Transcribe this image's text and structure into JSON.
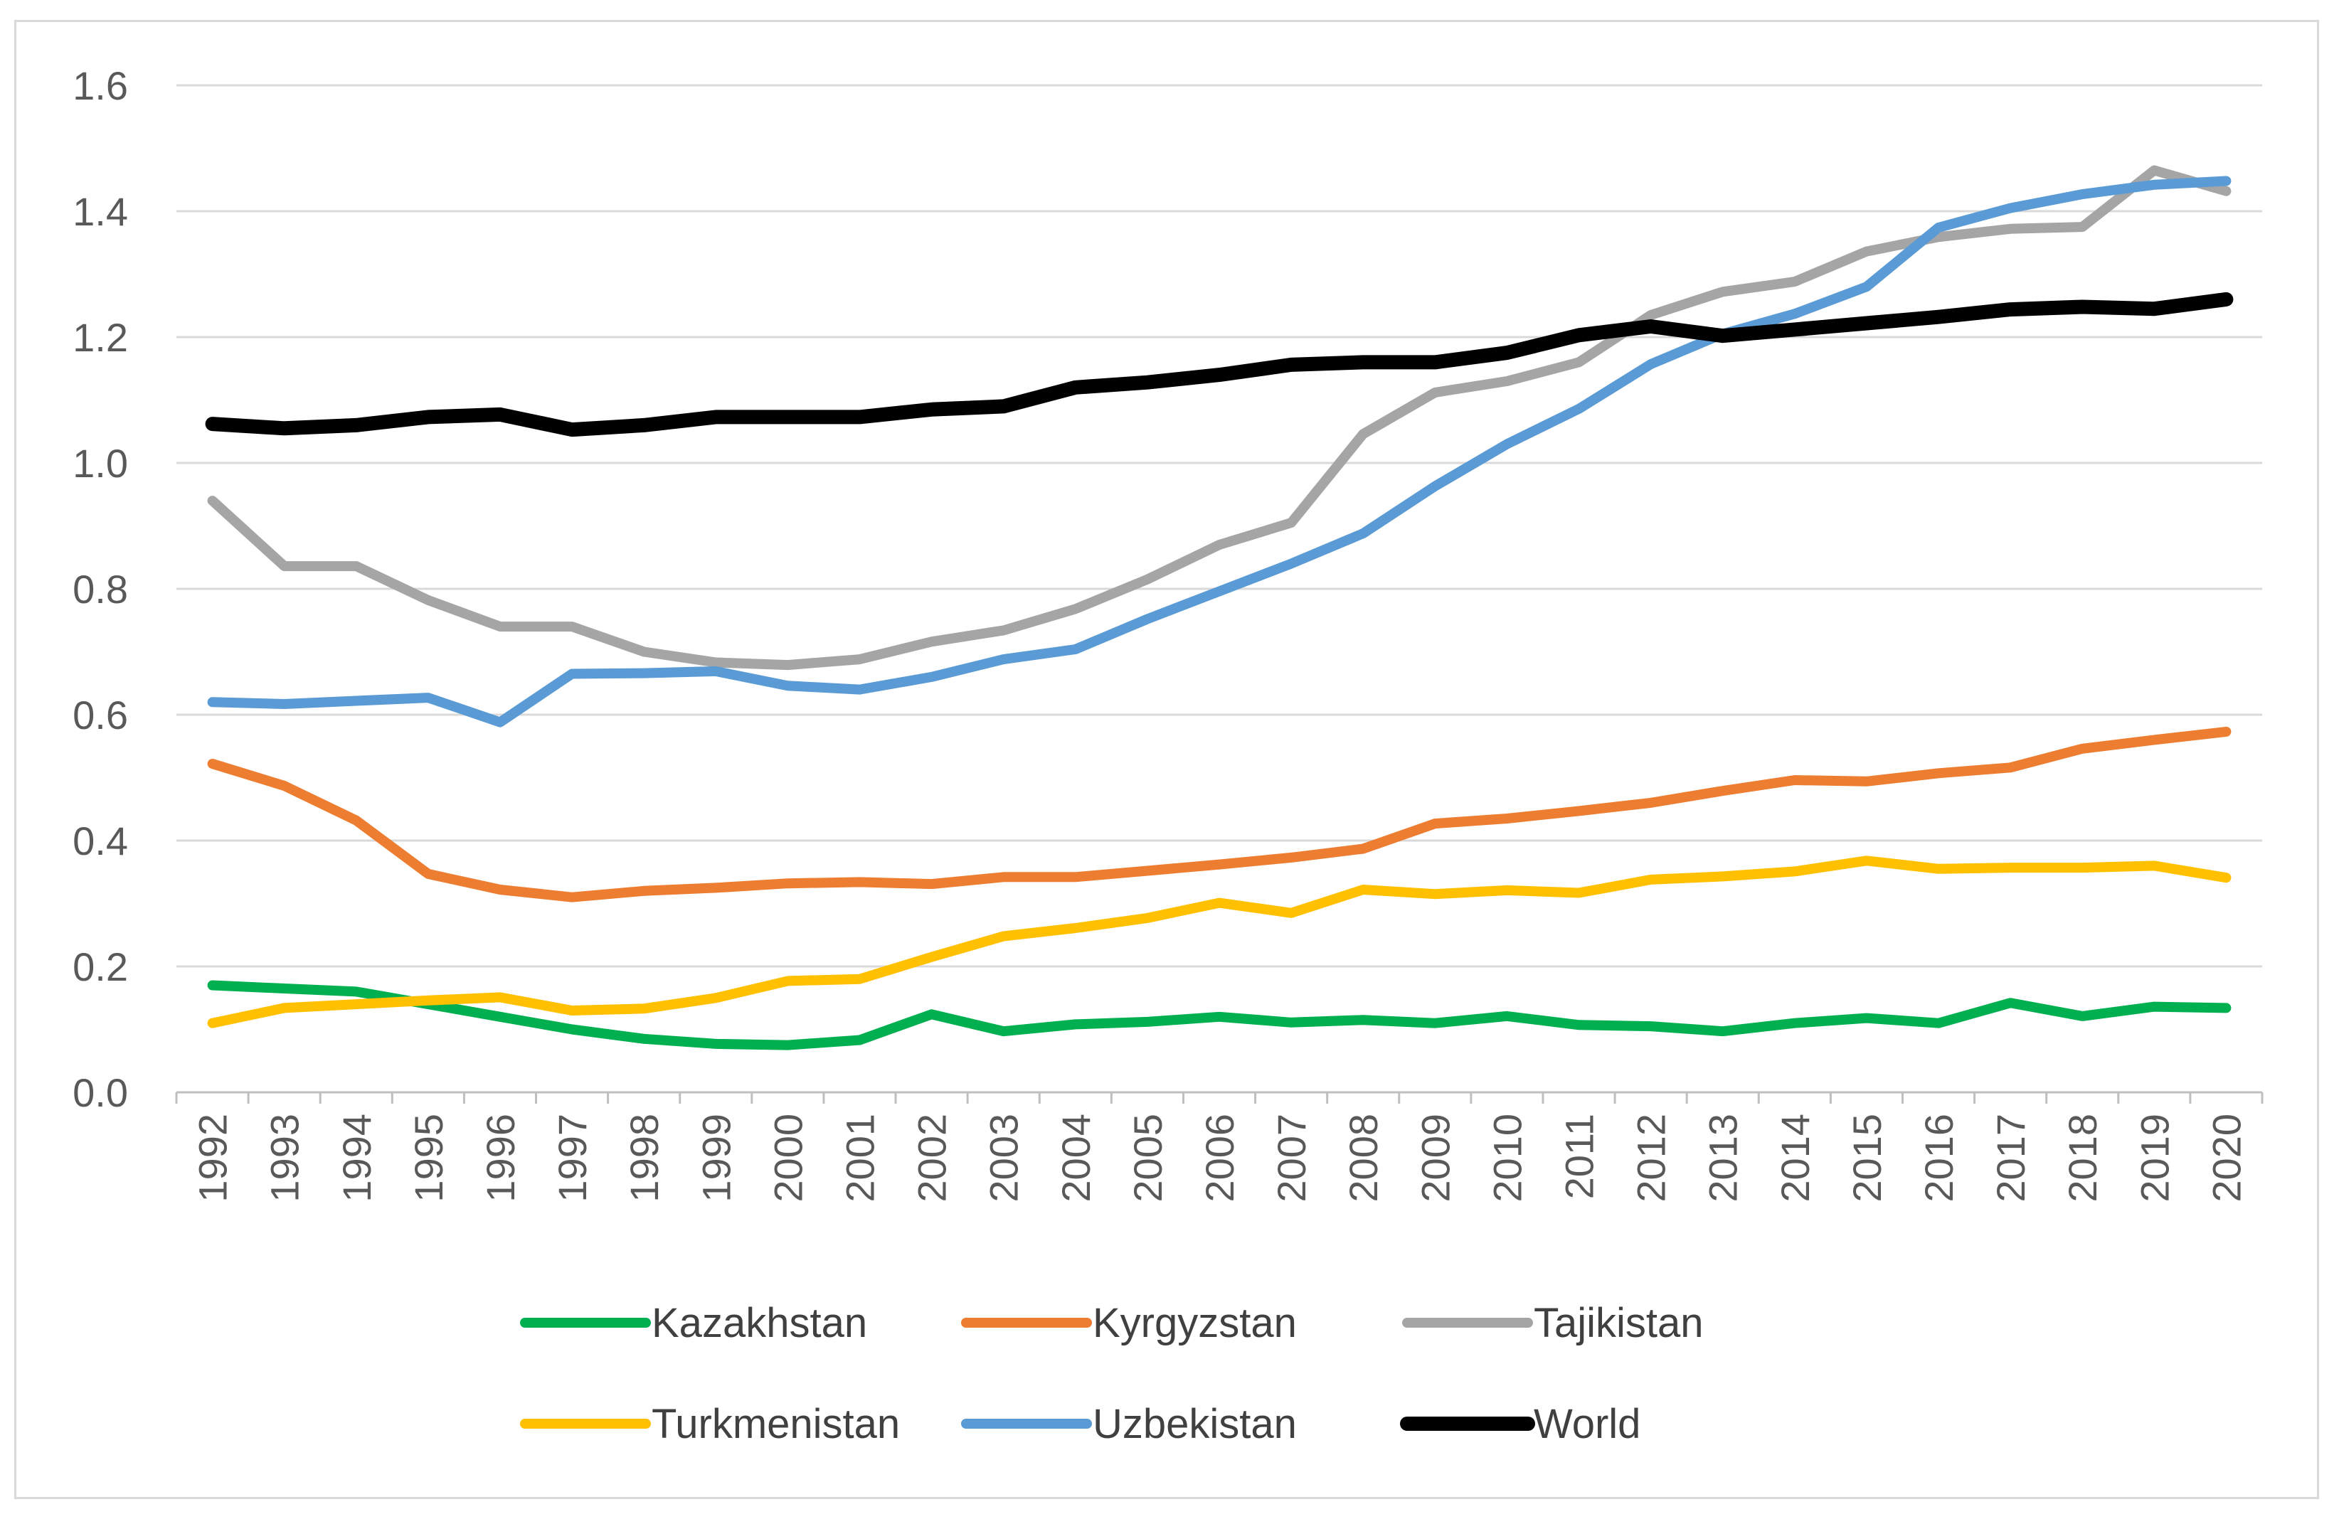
{
  "chart_data": {
    "type": "line",
    "title": "",
    "xlabel": "",
    "ylabel": "",
    "ylim": [
      0,
      1.6
    ],
    "y_ticks": [
      "0.0",
      "0.2",
      "0.4",
      "0.6",
      "0.8",
      "1.0",
      "1.2",
      "1.4",
      "1.6"
    ],
    "y_tick_values": [
      0,
      0.2,
      0.4,
      0.6,
      0.8,
      1.0,
      1.2,
      1.4,
      1.6
    ],
    "grid": true,
    "legend_position": "bottom",
    "categories": [
      "1992",
      "1993",
      "1994",
      "1995",
      "1996",
      "1997",
      "1998",
      "1999",
      "2000",
      "2001",
      "2002",
      "2003",
      "2004",
      "2005",
      "2006",
      "2007",
      "2008",
      "2009",
      "2010",
      "2011",
      "2012",
      "2013",
      "2014",
      "2015",
      "2016",
      "2017",
      "2018",
      "2019",
      "2020"
    ],
    "series": [
      {
        "name": "Kazakhstan",
        "color": "#00b050",
        "values": [
          0.17,
          0.165,
          0.16,
          0.14,
          0.12,
          0.1,
          0.085,
          0.077,
          0.075,
          0.083,
          0.124,
          0.097,
          0.108,
          0.112,
          0.12,
          0.111,
          0.115,
          0.11,
          0.121,
          0.107,
          0.105,
          0.097,
          0.11,
          0.118,
          0.11,
          0.142,
          0.121,
          0.136,
          0.134
        ]
      },
      {
        "name": "Kyrgyzstan",
        "color": "#ed7d31",
        "values": [
          0.522,
          0.487,
          0.432,
          0.347,
          0.322,
          0.31,
          0.32,
          0.325,
          0.332,
          0.334,
          0.331,
          0.342,
          0.342,
          0.352,
          0.362,
          0.373,
          0.387,
          0.427,
          0.435,
          0.447,
          0.46,
          0.479,
          0.496,
          0.494,
          0.507,
          0.516,
          0.546,
          0.56,
          0.573
        ]
      },
      {
        "name": "Tajikistan",
        "color": "#a5a5a5",
        "values": [
          0.94,
          0.836,
          0.836,
          0.782,
          0.74,
          0.74,
          0.7,
          0.683,
          0.679,
          0.688,
          0.716,
          0.734,
          0.768,
          0.815,
          0.87,
          0.905,
          1.046,
          1.112,
          1.13,
          1.16,
          1.235,
          1.272,
          1.288,
          1.336,
          1.359,
          1.372,
          1.375,
          1.465,
          1.432
        ]
      },
      {
        "name": "Turkmenistan",
        "color": "#ffc000",
        "values": [
          0.11,
          0.134,
          0.14,
          0.146,
          0.151,
          0.13,
          0.133,
          0.15,
          0.177,
          0.18,
          0.215,
          0.248,
          0.261,
          0.277,
          0.301,
          0.285,
          0.322,
          0.315,
          0.321,
          0.317,
          0.338,
          0.343,
          0.351,
          0.368,
          0.355,
          0.357,
          0.357,
          0.36,
          0.341
        ]
      },
      {
        "name": "Uzbekistan",
        "color": "#5b9bd5",
        "values": [
          0.62,
          0.617,
          0.622,
          0.627,
          0.588,
          0.665,
          0.666,
          0.669,
          0.646,
          0.64,
          0.66,
          0.688,
          0.704,
          0.752,
          0.796,
          0.84,
          0.888,
          0.963,
          1.03,
          1.086,
          1.157,
          1.205,
          1.237,
          1.28,
          1.374,
          1.405,
          1.427,
          1.442,
          1.448
        ]
      },
      {
        "name": "World",
        "color": "#000000",
        "values": [
          1.062,
          1.055,
          1.06,
          1.073,
          1.077,
          1.053,
          1.06,
          1.073,
          1.073,
          1.073,
          1.085,
          1.09,
          1.12,
          1.128,
          1.14,
          1.156,
          1.16,
          1.16,
          1.175,
          1.203,
          1.217,
          1.202,
          1.212,
          1.222,
          1.232,
          1.244,
          1.248,
          1.245,
          1.26
        ]
      }
    ]
  }
}
